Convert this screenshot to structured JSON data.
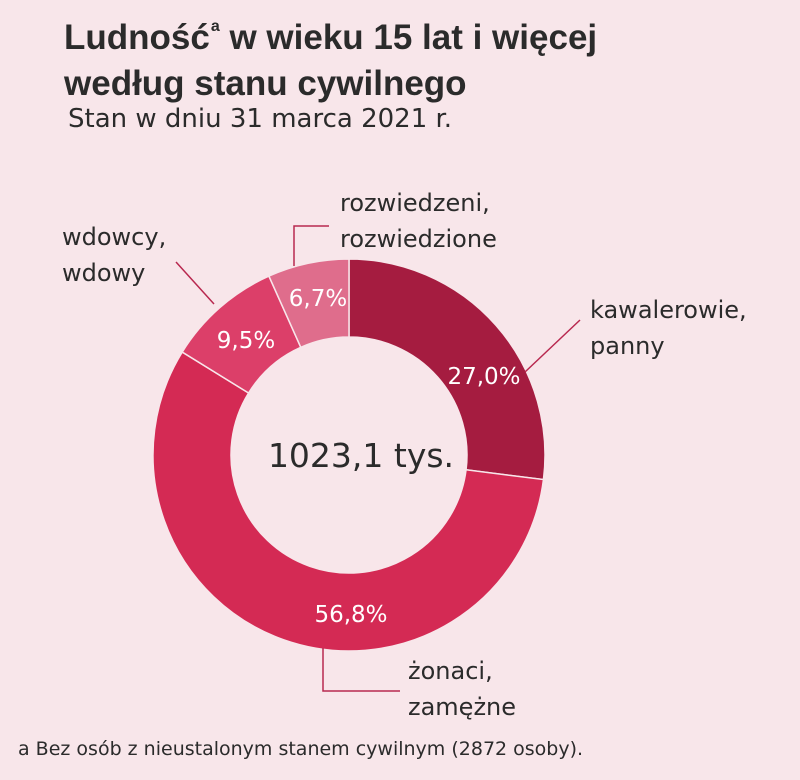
{
  "title_main": "Ludność",
  "title_sup": "a",
  "title_rest": " w wieku 15 lat i więcej",
  "title_line2": "według stanu cywilnego",
  "subtitle": "Stan w dniu 31 marca 2021 r.",
  "chart_data": {
    "type": "pie",
    "variant": "donut",
    "center_label": "1023,1 tys.",
    "slices": [
      {
        "label": [
          "kawalerowie,",
          "panny"
        ],
        "value": 27.0,
        "value_label": "27,0%",
        "color": "#a51c40"
      },
      {
        "label": [
          "żonaci,",
          "zamężne"
        ],
        "value": 56.8,
        "value_label": "56,8%",
        "color": "#d42a54"
      },
      {
        "label": [
          "wdowcy,",
          "wdowy"
        ],
        "value": 9.5,
        "value_label": "9,5%",
        "color": "#dc3f69"
      },
      {
        "label": [
          "rozwiedzeni,",
          "rozwiedzione"
        ],
        "value": 6.7,
        "value_label": "6,7%",
        "color": "#df6d8c"
      }
    ]
  },
  "footnote": "a Bez osób z nieustalonym stanem cywilnym (2872 osoby)."
}
